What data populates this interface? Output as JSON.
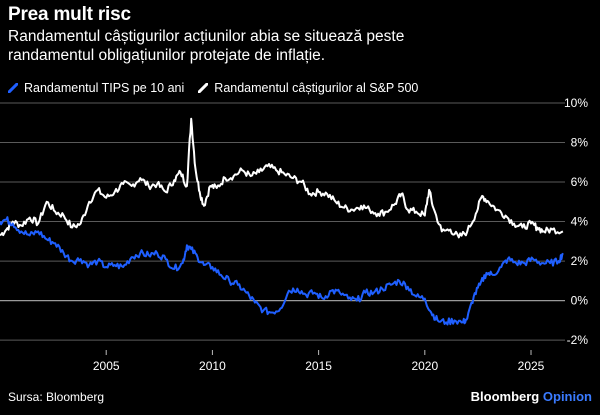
{
  "title": "Prea mult risc",
  "subtitle": "Randamentul câștigurilor acțiunilor abia se situează peste randamentul obligațiunilor protejate de inflație.",
  "source": "Sursa: Bloomberg",
  "brand": {
    "name": "Bloomberg",
    "suffix": "Opinion"
  },
  "colors": {
    "tips": "#1f5fff",
    "sp500": "#ffffff",
    "grid": "#5a5a5a",
    "zero": "#9a9a9a",
    "background": "#000000"
  },
  "chart_data": {
    "type": "line",
    "xlabel": "",
    "ylabel": "",
    "xlim": [
      2000,
      2026.6
    ],
    "ylim": [
      -2.5,
      10
    ],
    "y_ticks": [
      10,
      8,
      6,
      4,
      2,
      0,
      -2
    ],
    "y_tick_labels": [
      "10%",
      "8%",
      "6%",
      "4%",
      "2%",
      "0%",
      "-2%"
    ],
    "x_ticks": [
      2005,
      2010,
      2015,
      2020,
      2025
    ],
    "x_tick_labels": [
      "2005",
      "2010",
      "2015",
      "2020",
      "2025"
    ],
    "grid": true,
    "legend_position": "top-left",
    "series": [
      {
        "name": "Randamentul TIPS pe 10 ani",
        "color": "#1f5fff",
        "x": [
          2000.0,
          2000.3,
          2000.6,
          2001.0,
          2001.4,
          2001.8,
          2002.2,
          2002.6,
          2003.0,
          2003.4,
          2003.8,
          2004.2,
          2004.6,
          2005.0,
          2005.4,
          2005.8,
          2006.2,
          2006.6,
          2007.0,
          2007.4,
          2007.8,
          2008.2,
          2008.6,
          2008.8,
          2009.0,
          2009.3,
          2009.6,
          2010.0,
          2010.4,
          2010.8,
          2011.2,
          2011.6,
          2012.0,
          2012.4,
          2012.8,
          2013.2,
          2013.6,
          2014.0,
          2014.4,
          2014.8,
          2015.2,
          2015.6,
          2016.0,
          2016.4,
          2016.8,
          2017.2,
          2017.6,
          2018.0,
          2018.4,
          2018.8,
          2019.2,
          2019.6,
          2020.0,
          2020.3,
          2020.6,
          2021.0,
          2021.4,
          2021.8,
          2022.0,
          2022.3,
          2022.6,
          2022.9,
          2023.2,
          2023.6,
          2023.9,
          2024.3,
          2024.7,
          2025.1,
          2025.5,
          2025.9,
          2026.3,
          2026.5
        ],
        "values": [
          4.0,
          4.1,
          3.9,
          3.5,
          3.3,
          3.5,
          3.1,
          2.9,
          2.4,
          2.0,
          2.1,
          1.8,
          2.0,
          1.7,
          1.8,
          1.7,
          2.2,
          2.4,
          2.3,
          2.4,
          2.1,
          1.6,
          1.9,
          2.8,
          2.6,
          2.2,
          1.8,
          1.7,
          1.3,
          1.0,
          0.8,
          0.4,
          -0.1,
          -0.5,
          -0.6,
          -0.4,
          0.5,
          0.6,
          0.3,
          0.4,
          0.1,
          0.5,
          0.4,
          0.1,
          0.0,
          0.4,
          0.4,
          0.6,
          0.8,
          1.0,
          0.7,
          0.2,
          0.1,
          -0.6,
          -1.0,
          -1.1,
          -1.0,
          -1.1,
          -0.9,
          0.2,
          0.8,
          1.4,
          1.3,
          1.7,
          2.1,
          1.9,
          1.9,
          2.1,
          1.9,
          1.9,
          2.0,
          2.4
        ]
      },
      {
        "name": "Randamentul câștigurilor al S&P 500",
        "color": "#ffffff",
        "x": [
          2000.0,
          2000.3,
          2000.6,
          2001.0,
          2001.4,
          2001.8,
          2002.2,
          2002.6,
          2003.0,
          2003.4,
          2003.8,
          2004.2,
          2004.6,
          2005.0,
          2005.4,
          2005.8,
          2006.2,
          2006.6,
          2007.0,
          2007.4,
          2007.8,
          2008.2,
          2008.5,
          2008.8,
          2009.0,
          2009.2,
          2009.4,
          2009.6,
          2009.9,
          2010.2,
          2010.6,
          2011.0,
          2011.4,
          2011.8,
          2012.2,
          2012.6,
          2013.0,
          2013.4,
          2013.8,
          2014.2,
          2014.6,
          2015.0,
          2015.4,
          2015.8,
          2016.2,
          2016.6,
          2017.0,
          2017.4,
          2017.8,
          2018.2,
          2018.6,
          2018.9,
          2019.2,
          2019.6,
          2020.0,
          2020.2,
          2020.4,
          2020.8,
          2021.2,
          2021.6,
          2022.0,
          2022.4,
          2022.7,
          2023.0,
          2023.4,
          2023.8,
          2024.2,
          2024.6,
          2025.0,
          2025.3,
          2025.6,
          2026.0,
          2026.5
        ],
        "values": [
          3.3,
          3.6,
          4.0,
          3.8,
          4.2,
          3.9,
          5.0,
          4.5,
          4.3,
          3.7,
          3.9,
          5.0,
          5.6,
          5.2,
          5.5,
          5.9,
          5.8,
          6.2,
          5.8,
          5.9,
          5.5,
          6.1,
          6.5,
          5.8,
          9.2,
          6.7,
          5.5,
          4.8,
          5.8,
          5.7,
          6.2,
          6.3,
          6.6,
          6.3,
          6.5,
          6.8,
          6.6,
          6.4,
          6.2,
          6.0,
          5.4,
          5.5,
          5.4,
          5.0,
          4.7,
          4.6,
          4.8,
          4.6,
          4.4,
          4.5,
          4.9,
          5.4,
          4.6,
          4.5,
          4.3,
          5.6,
          4.7,
          3.5,
          3.6,
          3.2,
          3.5,
          4.4,
          5.3,
          5.0,
          4.6,
          4.3,
          3.9,
          3.7,
          3.9,
          3.7,
          3.5,
          3.6,
          3.5
        ]
      }
    ]
  }
}
